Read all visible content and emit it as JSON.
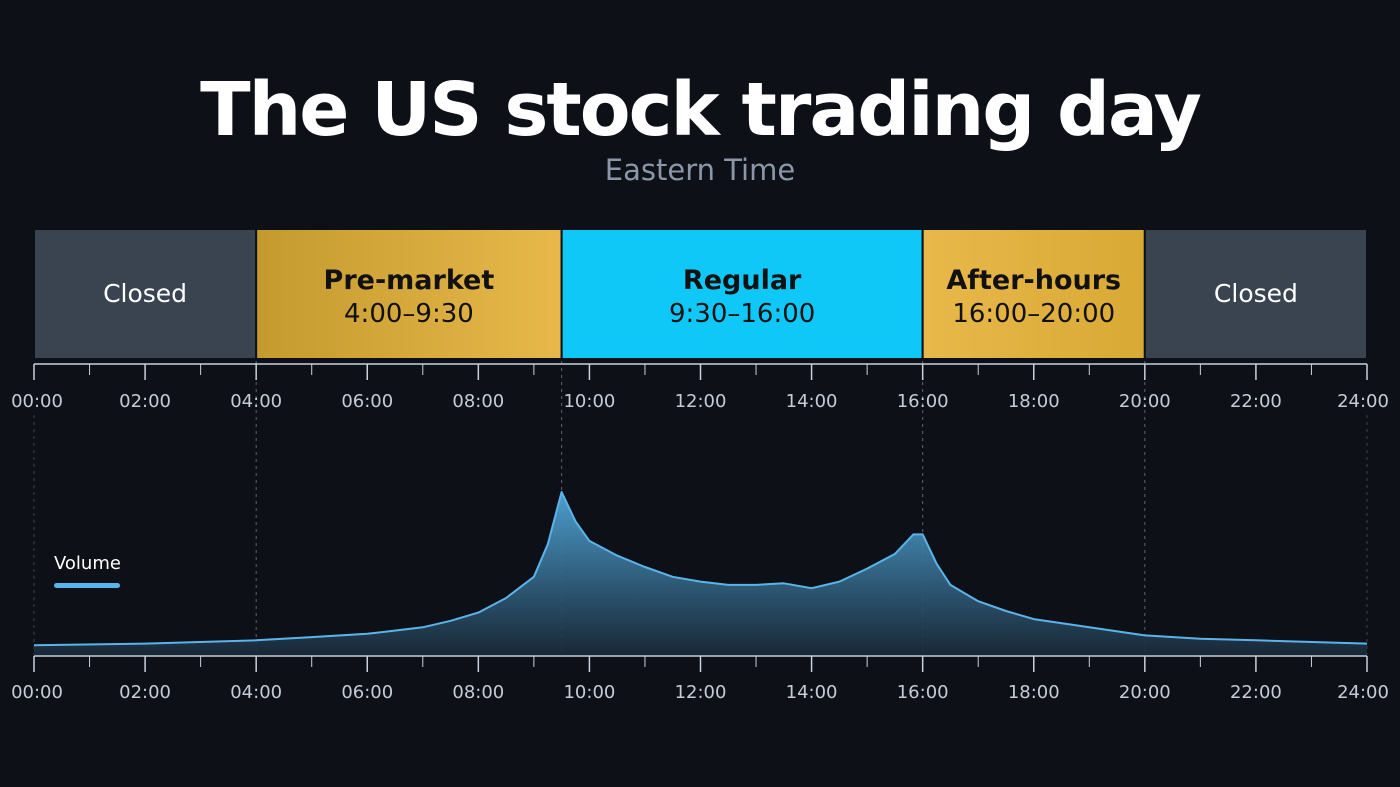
{
  "title": "The US stock trading day",
  "subtitle": "Eastern Time",
  "chart_data": [
    {
      "type": "timeline",
      "x_axis": {
        "range": [
          "00:00",
          "24:00"
        ],
        "ticks": [
          "00:00",
          "02:00",
          "04:00",
          "06:00",
          "08:00",
          "10:00",
          "12:00",
          "14:00",
          "16:00",
          "18:00",
          "20:00",
          "22:00",
          "24:00"
        ]
      },
      "sessions": [
        {
          "name": "Closed",
          "hours": "",
          "start": "00:00",
          "end": "04:00",
          "color": "#3a4450"
        },
        {
          "name": "Pre-market",
          "hours": "4:00–9:30",
          "start": "04:00",
          "end": "09:30",
          "color": "#e0b43c"
        },
        {
          "name": "Regular",
          "hours": "9:30–16:00",
          "start": "09:30",
          "end": "16:00",
          "color": "#0fc8f8"
        },
        {
          "name": "After-hours",
          "hours": "16:00–20:00",
          "start": "16:00",
          "end": "20:00",
          "color": "#e3b43c"
        },
        {
          "name": "Closed",
          "hours": "",
          "start": "20:00",
          "end": "24:00",
          "color": "#3a4450"
        }
      ],
      "boundaries": [
        "04:00",
        "09:30",
        "16:00",
        "20:00"
      ]
    },
    {
      "type": "area",
      "legend": {
        "label": "Volume",
        "position": "top-left"
      },
      "x_axis": {
        "range": [
          "00:00",
          "24:00"
        ],
        "ticks": [
          "00:00",
          "02:00",
          "04:00",
          "06:00",
          "08:00",
          "10:00",
          "12:00",
          "14:00",
          "16:00",
          "18:00",
          "20:00",
          "22:00",
          "24:00"
        ]
      },
      "y_axis": {
        "visible": false,
        "range": [
          0,
          100
        ]
      },
      "series": [
        {
          "name": "Volume",
          "color": "#5ab4ec",
          "points": [
            [
              "00:00",
              6
            ],
            [
              "02:00",
              7
            ],
            [
              "04:00",
              9
            ],
            [
              "05:00",
              11
            ],
            [
              "06:00",
              13
            ],
            [
              "07:00",
              17
            ],
            [
              "07:30",
              21
            ],
            [
              "08:00",
              26
            ],
            [
              "08:30",
              35
            ],
            [
              "09:00",
              48
            ],
            [
              "09:15",
              68
            ],
            [
              "09:30",
              100
            ],
            [
              "09:45",
              82
            ],
            [
              "10:00",
              70
            ],
            [
              "10:30",
              61
            ],
            [
              "11:00",
              54
            ],
            [
              "11:30",
              48
            ],
            [
              "12:00",
              45
            ],
            [
              "12:30",
              43
            ],
            [
              "13:00",
              43
            ],
            [
              "13:30",
              44
            ],
            [
              "14:00",
              41
            ],
            [
              "14:30",
              45
            ],
            [
              "15:00",
              53
            ],
            [
              "15:30",
              62
            ],
            [
              "15:50",
              74
            ],
            [
              "16:00",
              74
            ],
            [
              "16:15",
              56
            ],
            [
              "16:30",
              43
            ],
            [
              "17:00",
              33
            ],
            [
              "17:30",
              27
            ],
            [
              "18:00",
              22
            ],
            [
              "19:00",
              17
            ],
            [
              "20:00",
              12
            ],
            [
              "21:00",
              10
            ],
            [
              "22:00",
              9
            ],
            [
              "24:00",
              7
            ]
          ]
        }
      ]
    }
  ]
}
